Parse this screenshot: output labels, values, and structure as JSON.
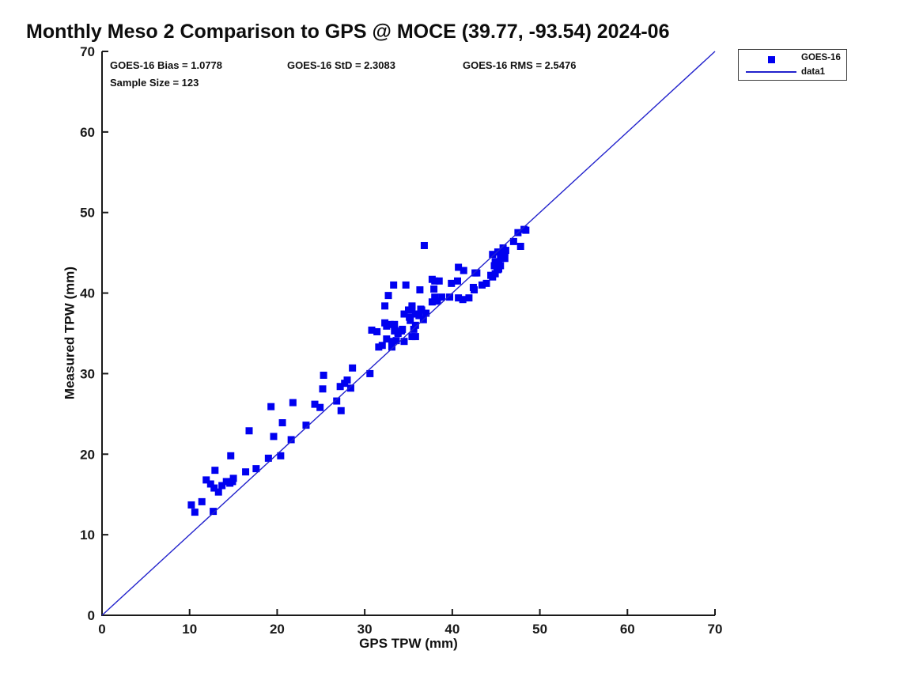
{
  "chart_data": {
    "type": "scatter",
    "title": "Monthly Meso 2 Comparison to GPS @ MOCE (39.77, -93.54) 2024-06",
    "xlabel": "GPS TPW (mm)",
    "ylabel": "Measured TPW (mm)",
    "xlim": [
      0,
      70
    ],
    "ylim": [
      0,
      70
    ],
    "xticks": [
      0,
      10,
      20,
      30,
      40,
      50,
      60,
      70
    ],
    "yticks": [
      0,
      10,
      20,
      30,
      40,
      50,
      60,
      70
    ],
    "grid": false,
    "legend": {
      "position": "outside-top-right",
      "entries": [
        {
          "label": "GOES-16",
          "symbol": "square",
          "color": "#0000f0"
        },
        {
          "label": "data1",
          "symbol": "line",
          "color": "#2222cc"
        }
      ]
    },
    "annotations": [
      "GOES-16 Bias = 1.0778",
      "GOES-16 StD = 2.3083",
      "GOES-16 RMS = 2.5476",
      "Sample Size = 123"
    ],
    "stats": {
      "bias": 1.0778,
      "std": 2.3083,
      "rms": 2.5476,
      "sample_size": 123
    },
    "series": [
      {
        "name": "GOES-16",
        "type": "scatter",
        "marker": "square",
        "marker_size_px": 9,
        "color": "#0000f0",
        "points": [
          [
            10.2,
            13.7
          ],
          [
            10.6,
            12.8
          ],
          [
            11.4,
            14.1
          ],
          [
            12.7,
            12.9
          ],
          [
            11.9,
            16.8
          ],
          [
            12.4,
            16.3
          ],
          [
            12.8,
            15.8
          ],
          [
            13.3,
            15.3
          ],
          [
            13.7,
            16.1
          ],
          [
            14.2,
            16.6
          ],
          [
            14.6,
            16.4
          ],
          [
            15.0,
            17.0
          ],
          [
            14.9,
            16.6
          ],
          [
            12.9,
            18.0
          ],
          [
            14.7,
            19.8
          ],
          [
            16.4,
            17.8
          ],
          [
            17.6,
            18.2
          ],
          [
            16.8,
            22.9
          ],
          [
            19.0,
            19.5
          ],
          [
            20.4,
            19.8
          ],
          [
            19.3,
            25.9
          ],
          [
            19.6,
            22.2
          ],
          [
            20.6,
            23.9
          ],
          [
            21.6,
            21.8
          ],
          [
            21.8,
            26.4
          ],
          [
            23.3,
            23.6
          ],
          [
            24.3,
            26.2
          ],
          [
            24.9,
            25.8
          ],
          [
            25.3,
            29.8
          ],
          [
            25.2,
            28.1
          ],
          [
            26.8,
            26.6
          ],
          [
            27.3,
            25.4
          ],
          [
            27.2,
            28.4
          ],
          [
            27.7,
            28.8
          ],
          [
            28.0,
            29.2
          ],
          [
            28.4,
            28.2
          ],
          [
            28.6,
            30.7
          ],
          [
            30.6,
            30.0
          ],
          [
            30.8,
            35.4
          ],
          [
            31.4,
            35.2
          ],
          [
            31.6,
            33.3
          ],
          [
            32.0,
            33.5
          ],
          [
            32.5,
            34.3
          ],
          [
            33.1,
            33.3
          ],
          [
            33.6,
            34.1
          ],
          [
            34.5,
            34.0
          ],
          [
            35.4,
            34.6
          ],
          [
            35.8,
            34.6
          ],
          [
            32.3,
            36.3
          ],
          [
            32.9,
            36.1
          ],
          [
            33.4,
            35.3
          ],
          [
            33.8,
            35.0
          ],
          [
            34.3,
            35.5
          ],
          [
            35.6,
            35.5
          ],
          [
            32.5,
            35.9
          ],
          [
            33.4,
            36.1
          ],
          [
            33.8,
            35.1
          ],
          [
            34.2,
            35.3
          ],
          [
            35.2,
            36.6
          ],
          [
            35.8,
            36.0
          ],
          [
            36.7,
            36.7
          ],
          [
            37.0,
            37.5
          ],
          [
            35.0,
            37.9
          ],
          [
            35.4,
            38.2
          ],
          [
            35.8,
            37.4
          ],
          [
            36.2,
            37.2
          ],
          [
            36.5,
            37.9
          ],
          [
            34.5,
            37.4
          ],
          [
            35.1,
            37.0
          ],
          [
            36.4,
            38.0
          ],
          [
            33.1,
            34.0
          ],
          [
            32.3,
            38.4
          ],
          [
            35.4,
            38.4
          ],
          [
            32.7,
            39.7
          ],
          [
            33.3,
            41.0
          ],
          [
            34.7,
            41.0
          ],
          [
            36.3,
            40.4
          ],
          [
            36.8,
            45.9
          ],
          [
            37.7,
            38.9
          ],
          [
            37.7,
            41.7
          ],
          [
            38.0,
            41.5
          ],
          [
            38.5,
            41.5
          ],
          [
            37.9,
            40.5
          ],
          [
            38.0,
            39.5
          ],
          [
            38.3,
            39.0
          ],
          [
            38.8,
            39.5
          ],
          [
            39.7,
            39.5
          ],
          [
            39.9,
            41.2
          ],
          [
            40.6,
            41.5
          ],
          [
            40.7,
            39.4
          ],
          [
            41.2,
            39.2
          ],
          [
            41.9,
            39.4
          ],
          [
            40.7,
            43.2
          ],
          [
            41.3,
            42.8
          ],
          [
            42.4,
            40.7
          ],
          [
            42.5,
            40.4
          ],
          [
            42.8,
            42.5
          ],
          [
            43.4,
            41.0
          ],
          [
            43.9,
            41.2
          ],
          [
            42.6,
            42.5
          ],
          [
            44.4,
            42.2
          ],
          [
            44.6,
            42.0
          ],
          [
            44.9,
            42.4
          ],
          [
            44.8,
            43.4
          ],
          [
            45.1,
            43.1
          ],
          [
            45.3,
            43.0
          ],
          [
            45.2,
            42.9
          ],
          [
            45.5,
            43.4
          ],
          [
            44.6,
            44.8
          ],
          [
            44.9,
            43.9
          ],
          [
            45.3,
            43.6
          ],
          [
            45.5,
            44.4
          ],
          [
            45.2,
            45.1
          ],
          [
            45.8,
            45.6
          ],
          [
            46.0,
            45.1
          ],
          [
            46.1,
            45.3
          ],
          [
            45.7,
            44.8
          ],
          [
            46.0,
            44.3
          ],
          [
            47.0,
            46.4
          ],
          [
            47.5,
            47.5
          ],
          [
            47.8,
            45.8
          ],
          [
            48.2,
            47.9
          ],
          [
            48.4,
            47.8
          ]
        ]
      },
      {
        "name": "data1",
        "type": "line",
        "color": "#2222cc",
        "points": [
          [
            0,
            0
          ],
          [
            70,
            70
          ]
        ]
      }
    ]
  },
  "colors": {
    "marker": "#0000f0",
    "line": "#2222cc",
    "axis": "#1a1a1a",
    "text": "#111111"
  }
}
